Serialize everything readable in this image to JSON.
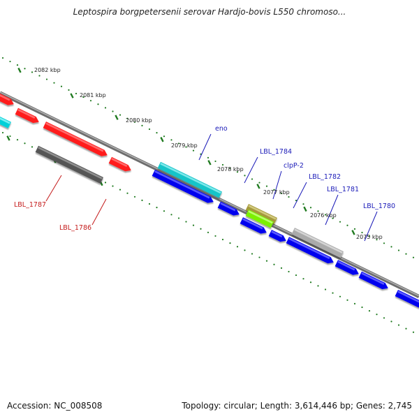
{
  "title": "Leptospira borgpetersenii serovar Hardjo-bovis L550 chromoso...",
  "footer": {
    "accession": "Accession: NC_008508",
    "summary": "Topology: circular; Length: 3,614,446 bp; Genes: 2,745"
  },
  "colors": {
    "backbone": "#8a8a8a",
    "tick": "#1f7a1f",
    "forward_label": "#1a1ab8",
    "reverse_label": "#c41a1a"
  },
  "scale_labels": [
    "2082 kbp",
    "2081 kbp",
    "2080 kbp",
    "2079 kbp",
    "2078 kbp",
    "2077 kbp",
    "2076 kbp",
    "2075 kbp"
  ],
  "gene_labels": [
    {
      "id": "eno",
      "text": "eno",
      "strand": "forward"
    },
    {
      "id": "lbl-1784",
      "text": "LBL_1784",
      "strand": "forward"
    },
    {
      "id": "clpp-2",
      "text": "clpP-2",
      "strand": "forward"
    },
    {
      "id": "lbl-1782",
      "text": "LBL_1782",
      "strand": "forward"
    },
    {
      "id": "lbl-1781",
      "text": "LBL_1781",
      "strand": "forward"
    },
    {
      "id": "lbl-1780",
      "text": "LBL_1780",
      "strand": "forward"
    },
    {
      "id": "lbl-1787",
      "text": "LBL_1787",
      "strand": "reverse"
    },
    {
      "id": "lbl-1786",
      "text": "LBL_1786",
      "strand": "reverse"
    }
  ]
}
